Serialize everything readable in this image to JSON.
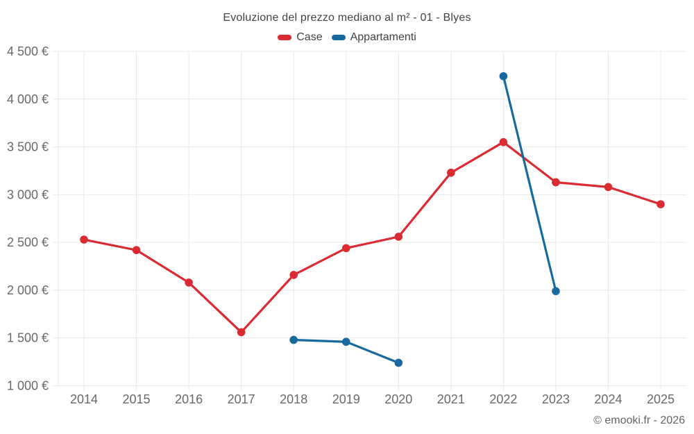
{
  "page": {
    "title": "Evoluzione del prezzo mediano al m² - 01 - Blyes",
    "footer": "© emooki.fr - 2026"
  },
  "legend": [
    {
      "label": "Case",
      "color": "#da2a32"
    },
    {
      "label": "Appartamenti",
      "color": "#17699e"
    }
  ],
  "chart_data": {
    "type": "line",
    "title": "Evoluzione del prezzo mediano al m² - 01 - Blyes",
    "categories": [
      "2014",
      "2015",
      "2016",
      "2017",
      "2018",
      "2019",
      "2020",
      "2021",
      "2022",
      "2023",
      "2024",
      "2025"
    ],
    "series": [
      {
        "name": "Case",
        "color": "#da2a32",
        "values": [
          2530,
          2420,
          2080,
          1560,
          2160,
          2440,
          2560,
          3230,
          3550,
          3130,
          3080,
          2900
        ]
      },
      {
        "name": "Appartamenti",
        "color": "#17699e",
        "values": [
          null,
          null,
          null,
          null,
          1480,
          1460,
          1240,
          null,
          4240,
          1990,
          null,
          null
        ]
      }
    ],
    "xlabel": "",
    "ylabel": "",
    "ylim": [
      1000,
      4500
    ],
    "ytick_step": 500,
    "ytick_suffix": " €",
    "thousands_separator": " ",
    "grid": true,
    "legend_position": "top",
    "colors": {
      "grid": "#e9e9e9",
      "tick": "#d9d9d9",
      "axis_label": "#65696c",
      "title_text": "#3f4347",
      "footer_text": "#636363"
    }
  }
}
